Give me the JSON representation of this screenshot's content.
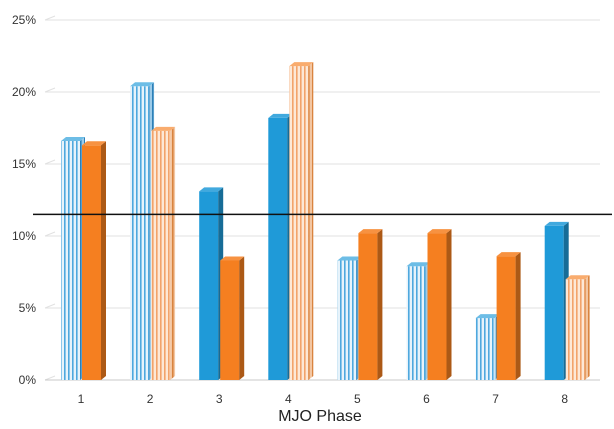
{
  "chart_data": {
    "type": "bar",
    "title": "",
    "xlabel": "MJO Phase",
    "ylabel": "",
    "categories": [
      "1",
      "2",
      "3",
      "4",
      "5",
      "6",
      "7",
      "8"
    ],
    "ylim": [
      0,
      25
    ],
    "yticks": [
      "0%",
      "5%",
      "10%",
      "15%",
      "20%",
      "25%"
    ],
    "grid": true,
    "reference_line": 11.5,
    "series": [
      {
        "color": "#1f9ad8",
        "values": [
          16.6,
          20.4,
          13.1,
          18.2,
          8.3,
          7.9,
          4.3,
          10.7
        ],
        "hatched": [
          true,
          true,
          false,
          false,
          true,
          true,
          true,
          false
        ]
      },
      {
        "color": "#f57f20",
        "values": [
          16.3,
          17.3,
          8.3,
          21.8,
          10.2,
          10.2,
          8.6,
          7.0
        ],
        "hatched": [
          false,
          true,
          false,
          true,
          false,
          false,
          false,
          true
        ]
      }
    ]
  }
}
